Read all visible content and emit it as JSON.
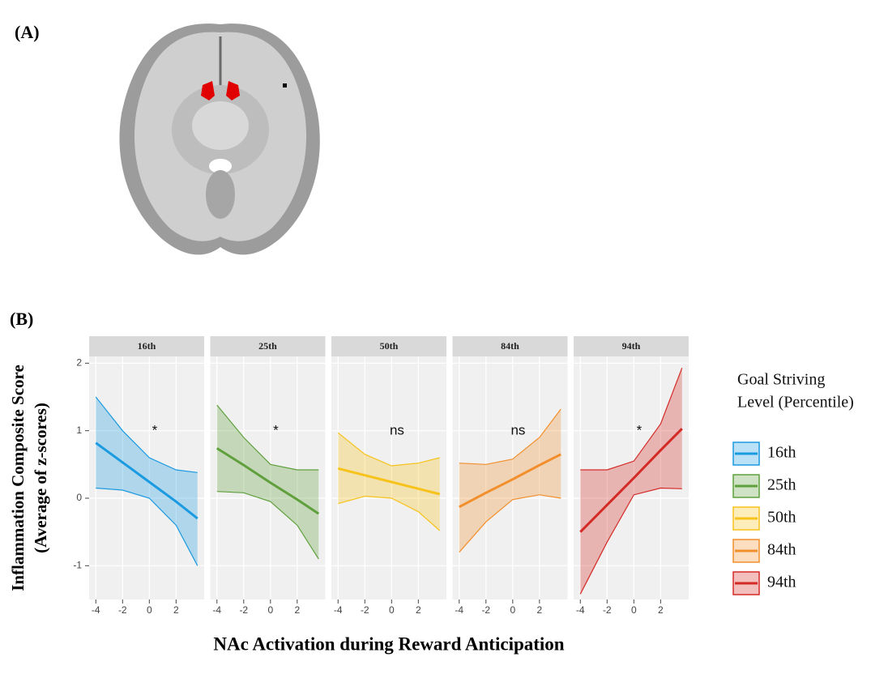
{
  "figure": {
    "panel_a_label": "(A)",
    "panel_b_label": "(B)"
  },
  "chart_data": {
    "type": "line",
    "ylabel": [
      "Inflammation Composite Score",
      "(Average of z-scores)"
    ],
    "xlabel": "NAc Activation during Reward Anticipation",
    "legend_title": [
      "Goal Striving",
      "Level (Percentile)"
    ],
    "xlim": [
      -4.5,
      4.1
    ],
    "xticks": [
      -4,
      -2,
      0,
      2
    ],
    "ylim": [
      -1.5,
      2.1
    ],
    "yticks": [
      -1,
      0,
      1,
      2
    ],
    "grid": true,
    "x": [
      -4,
      -2,
      0,
      2,
      3.6
    ],
    "series": [
      {
        "name": "16th",
        "color": "#1a9ae0",
        "values": [
          0.82,
          0.53,
          0.24,
          -0.05,
          -0.3
        ],
        "upper": [
          1.5,
          1.0,
          0.6,
          0.42,
          0.38
        ],
        "lower": [
          0.15,
          0.12,
          0.0,
          -0.4,
          -1.0
        ],
        "annotation": "*"
      },
      {
        "name": "25th",
        "color": "#5fa03c",
        "values": [
          0.74,
          0.49,
          0.23,
          -0.02,
          -0.23
        ],
        "upper": [
          1.38,
          0.9,
          0.5,
          0.42,
          0.42
        ],
        "lower": [
          0.1,
          0.08,
          -0.05,
          -0.4,
          -0.9
        ],
        "annotation": "*"
      },
      {
        "name": "50th",
        "color": "#f7c21c",
        "values": [
          0.44,
          0.34,
          0.24,
          0.14,
          0.06
        ],
        "upper": [
          0.97,
          0.65,
          0.48,
          0.52,
          0.6
        ],
        "lower": [
          -0.08,
          0.03,
          0.0,
          -0.2,
          -0.48
        ],
        "annotation": "ns"
      },
      {
        "name": "84th",
        "color": "#f28f2c",
        "values": [
          -0.13,
          0.08,
          0.28,
          0.49,
          0.65
        ],
        "upper": [
          0.52,
          0.5,
          0.58,
          0.9,
          1.32
        ],
        "lower": [
          -0.8,
          -0.35,
          -0.02,
          0.05,
          0.0
        ],
        "annotation": "ns"
      },
      {
        "name": "94th",
        "color": "#d42a26",
        "values": [
          -0.5,
          -0.1,
          0.3,
          0.71,
          1.03
        ],
        "upper": [
          0.42,
          0.42,
          0.55,
          1.1,
          1.93
        ],
        "lower": [
          -1.42,
          -0.65,
          0.05,
          0.15,
          0.14
        ],
        "annotation": "*"
      }
    ]
  }
}
